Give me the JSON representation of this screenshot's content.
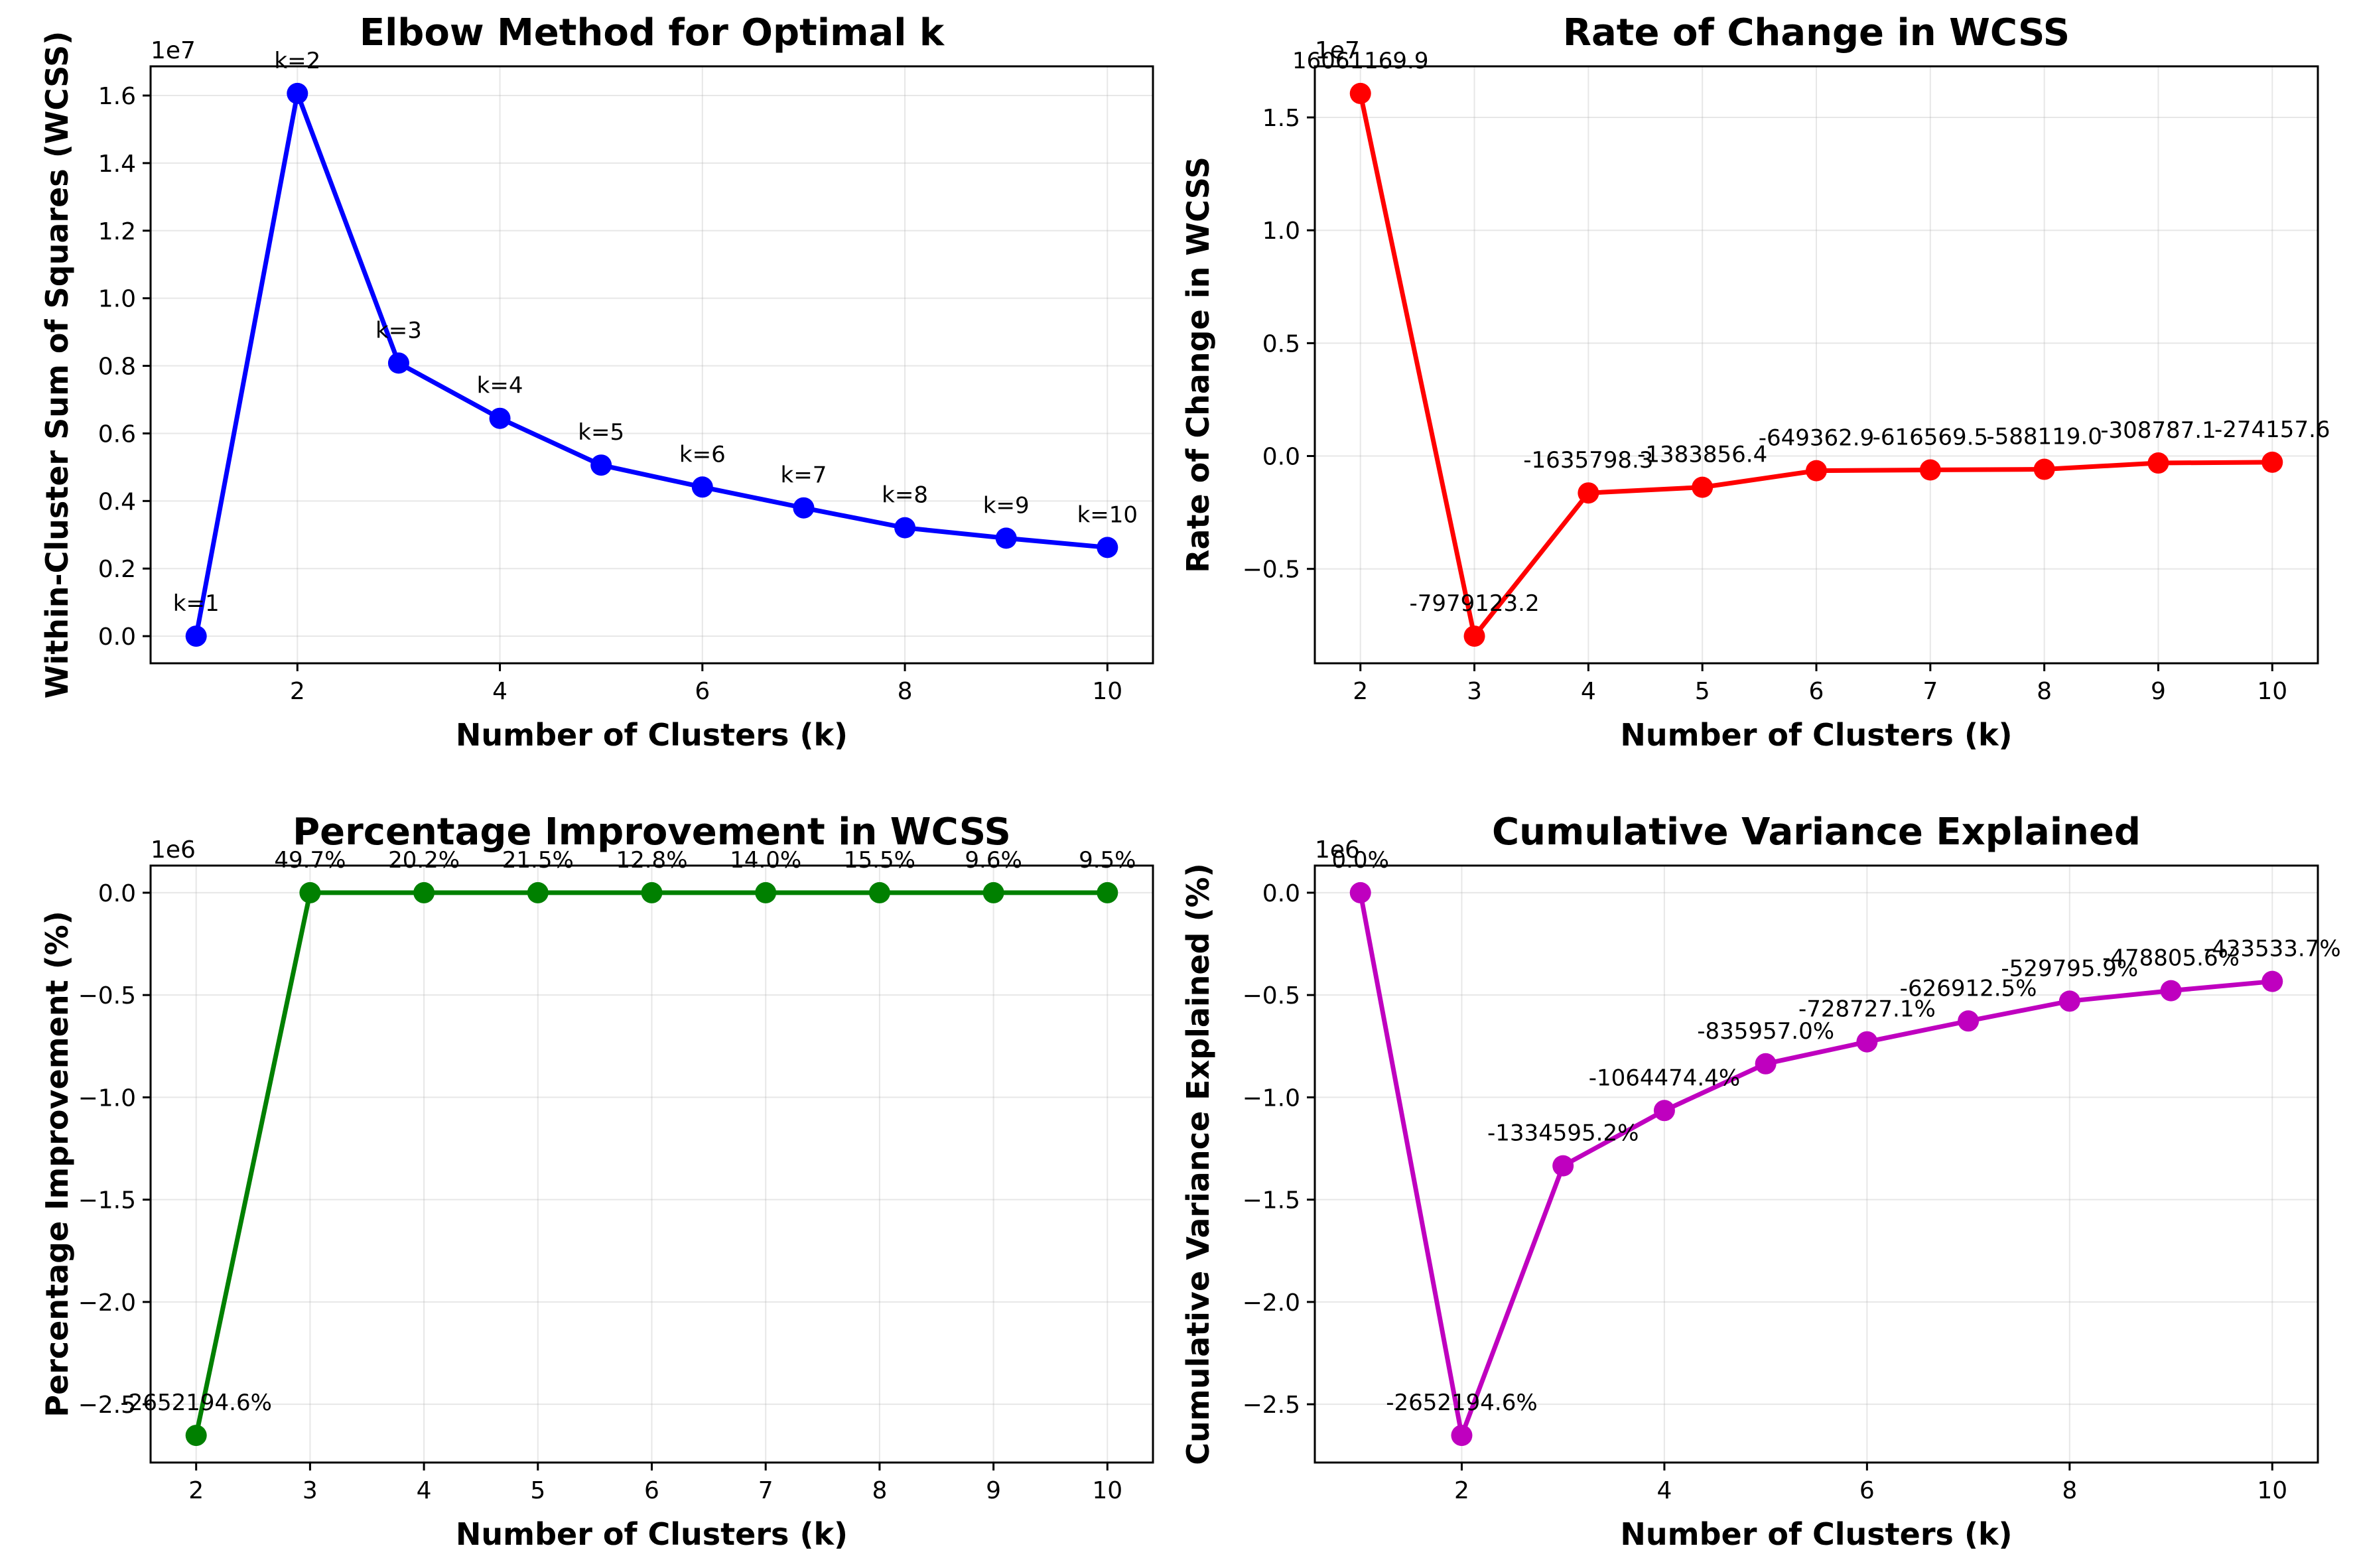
{
  "chart_data": [
    {
      "type": "line",
      "title": "Elbow Method for Optimal k",
      "xlabel": "Number of Clusters (k)",
      "ylabel": "Within-Cluster Sum of Squares (WCSS)",
      "y_offset_label": "1e7",
      "color": "#0000ff",
      "x": [
        1,
        2,
        3,
        4,
        5,
        6,
        7,
        8,
        9,
        10
      ],
      "y": [
        0,
        16061169.9,
        8082046.7,
        6446248.4,
        5062392.0,
        4413029.1,
        3796459.6,
        3208340.6,
        2899553.5,
        2625395.9
      ],
      "annotations": [
        "k=1",
        "k=2",
        "k=3",
        "k=4",
        "k=5",
        "k=6",
        "k=7",
        "k=8",
        "k=9",
        "k=10"
      ],
      "xlim": [
        0.55,
        10.45
      ],
      "ylim": [
        -803058.5,
        16864228.4
      ],
      "xticks": [
        2,
        4,
        6,
        8,
        10
      ],
      "xtick_labels": [
        "2",
        "4",
        "6",
        "8",
        "10"
      ],
      "yticks": [
        0,
        2000000,
        4000000,
        6000000,
        8000000,
        10000000,
        12000000,
        14000000,
        16000000
      ],
      "ytick_labels": [
        "0.0",
        "0.2",
        "0.4",
        "0.6",
        "0.8",
        "1.0",
        "1.2",
        "1.4",
        "1.6"
      ],
      "grid": true
    },
    {
      "type": "line",
      "title": "Rate of Change in WCSS",
      "xlabel": "Number of Clusters (k)",
      "ylabel": "Rate of Change in WCSS",
      "y_offset_label": "1e7",
      "color": "#ff0000",
      "x": [
        2,
        3,
        4,
        5,
        6,
        7,
        8,
        9,
        10
      ],
      "y": [
        16061169.9,
        -7979123.2,
        -1635798.3,
        -1383856.4,
        -649362.9,
        -616569.5,
        -588119.0,
        -308787.1,
        -274157.6
      ],
      "annotations": [
        "16061169.9",
        "-7979123.2",
        "-1635798.3",
        "-1383856.4",
        "-649362.9",
        "-616569.5",
        "-588119.0",
        "-308787.1",
        "-274157.6"
      ],
      "xlim": [
        1.6,
        10.4
      ],
      "ylim": [
        -9181138.8,
        17263185.5
      ],
      "xticks": [
        2,
        3,
        4,
        5,
        6,
        7,
        8,
        9,
        10
      ],
      "xtick_labels": [
        "2",
        "3",
        "4",
        "5",
        "6",
        "7",
        "8",
        "9",
        "10"
      ],
      "yticks": [
        -5000000,
        0,
        5000000,
        10000000,
        15000000
      ],
      "ytick_labels": [
        "−0.5",
        "0.0",
        "0.5",
        "1.0",
        "1.5"
      ],
      "grid": true
    },
    {
      "type": "line",
      "title": "Percentage Improvement in WCSS",
      "xlabel": "Number of Clusters (k)",
      "ylabel": "Percentage Improvement (%)",
      "y_offset_label": "1e6",
      "color": "#008000",
      "x": [
        2,
        3,
        4,
        5,
        6,
        7,
        8,
        9,
        10
      ],
      "y": [
        -2652194.6,
        49.7,
        20.2,
        21.5,
        12.8,
        14.0,
        15.5,
        9.6,
        9.5
      ],
      "annotations": [
        "-2652194.6%",
        "49.7%",
        "20.2%",
        "21.5%",
        "12.8%",
        "14.0%",
        "15.5%",
        "9.6%",
        "9.5%"
      ],
      "xlim": [
        1.6,
        10.4
      ],
      "ylim": [
        -2784806.8,
        132659.9
      ],
      "xticks": [
        2,
        3,
        4,
        5,
        6,
        7,
        8,
        9,
        10
      ],
      "xtick_labels": [
        "2",
        "3",
        "4",
        "5",
        "6",
        "7",
        "8",
        "9",
        "10"
      ],
      "yticks": [
        -2500000,
        -2000000,
        -1500000,
        -1000000,
        -500000,
        0
      ],
      "ytick_labels": [
        "−2.5",
        "−2.0",
        "−1.5",
        "−1.0",
        "−0.5",
        "0.0"
      ],
      "grid": true
    },
    {
      "type": "line",
      "title": "Cumulative Variance Explained",
      "xlabel": "Number of Clusters (k)",
      "ylabel": "Cumulative Variance Explained (%)",
      "y_offset_label": "1e6",
      "color": "#bf00bf",
      "x": [
        1,
        2,
        3,
        4,
        5,
        6,
        7,
        8,
        9,
        10
      ],
      "y": [
        0,
        -2652194.6,
        -1334595.2,
        -1064474.4,
        -835957.0,
        -728727.1,
        -626912.5,
        -529795.9,
        -478805.6,
        -433533.7
      ],
      "annotations": [
        "0.0%",
        "-2652194.6%",
        "-1334595.2%",
        "-1064474.4%",
        "-835957.0%",
        "-728727.1%",
        "-626912.5%",
        "-529795.9%",
        "-478805.6%",
        "-433533.7%"
      ],
      "xlim": [
        0.55,
        10.45
      ],
      "ylim": [
        -2784806.8,
        132609.7
      ],
      "xticks": [
        2,
        4,
        6,
        8,
        10
      ],
      "xtick_labels": [
        "2",
        "4",
        "6",
        "8",
        "10"
      ],
      "yticks": [
        -2500000,
        -2000000,
        -1500000,
        -1000000,
        -500000,
        0
      ],
      "ytick_labels": [
        "−2.5",
        "−2.0",
        "−1.5",
        "−1.0",
        "−0.5",
        "0.0"
      ],
      "grid": true
    }
  ]
}
